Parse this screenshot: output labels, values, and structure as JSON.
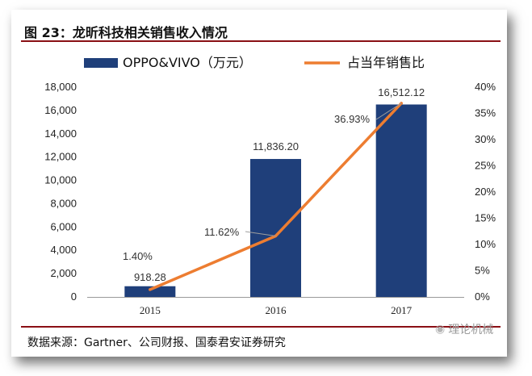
{
  "title": "图 23：龙昕科技相关销售收入情况",
  "source": "数据来源：Gartner、公司财报、国泰君安证券研究",
  "watermark": {
    "text": "理论机械",
    "icon": "wechat-icon"
  },
  "colors": {
    "bar": "#1f3f7a",
    "line": "#ed7d31",
    "rule": "#8a0f14",
    "leader": "#9e9e9e"
  },
  "chart_data": {
    "type": "bar",
    "categories": [
      "2015",
      "2016",
      "2017"
    ],
    "series": [
      {
        "name": "OPPO&VIVO（万元）",
        "type": "bar",
        "axis": "left",
        "values": [
          918.28,
          11836.2,
          16512.12
        ],
        "labels": [
          "918.28",
          "11,836.20",
          "16,512.12"
        ]
      },
      {
        "name": "占当年销售比",
        "type": "line",
        "axis": "right",
        "values": [
          1.4,
          11.62,
          36.93
        ],
        "labels": [
          "1.40%",
          "11.62%",
          "36.93%"
        ]
      }
    ],
    "y_left": {
      "lim": [
        0,
        18000
      ],
      "ticks": [
        0,
        2000,
        4000,
        6000,
        8000,
        10000,
        12000,
        14000,
        16000,
        18000
      ],
      "tick_labels": [
        "0",
        "2,000",
        "4,000",
        "6,000",
        "8,000",
        "10,000",
        "12,000",
        "14,000",
        "16,000",
        "18,000"
      ]
    },
    "y_right": {
      "lim": [
        0,
        40
      ],
      "ticks": [
        0,
        5,
        10,
        15,
        20,
        25,
        30,
        35,
        40
      ],
      "tick_labels": [
        "0%",
        "5%",
        "10%",
        "15%",
        "20%",
        "25%",
        "30%",
        "35%",
        "40%"
      ]
    },
    "legend": "top",
    "grid": false
  }
}
